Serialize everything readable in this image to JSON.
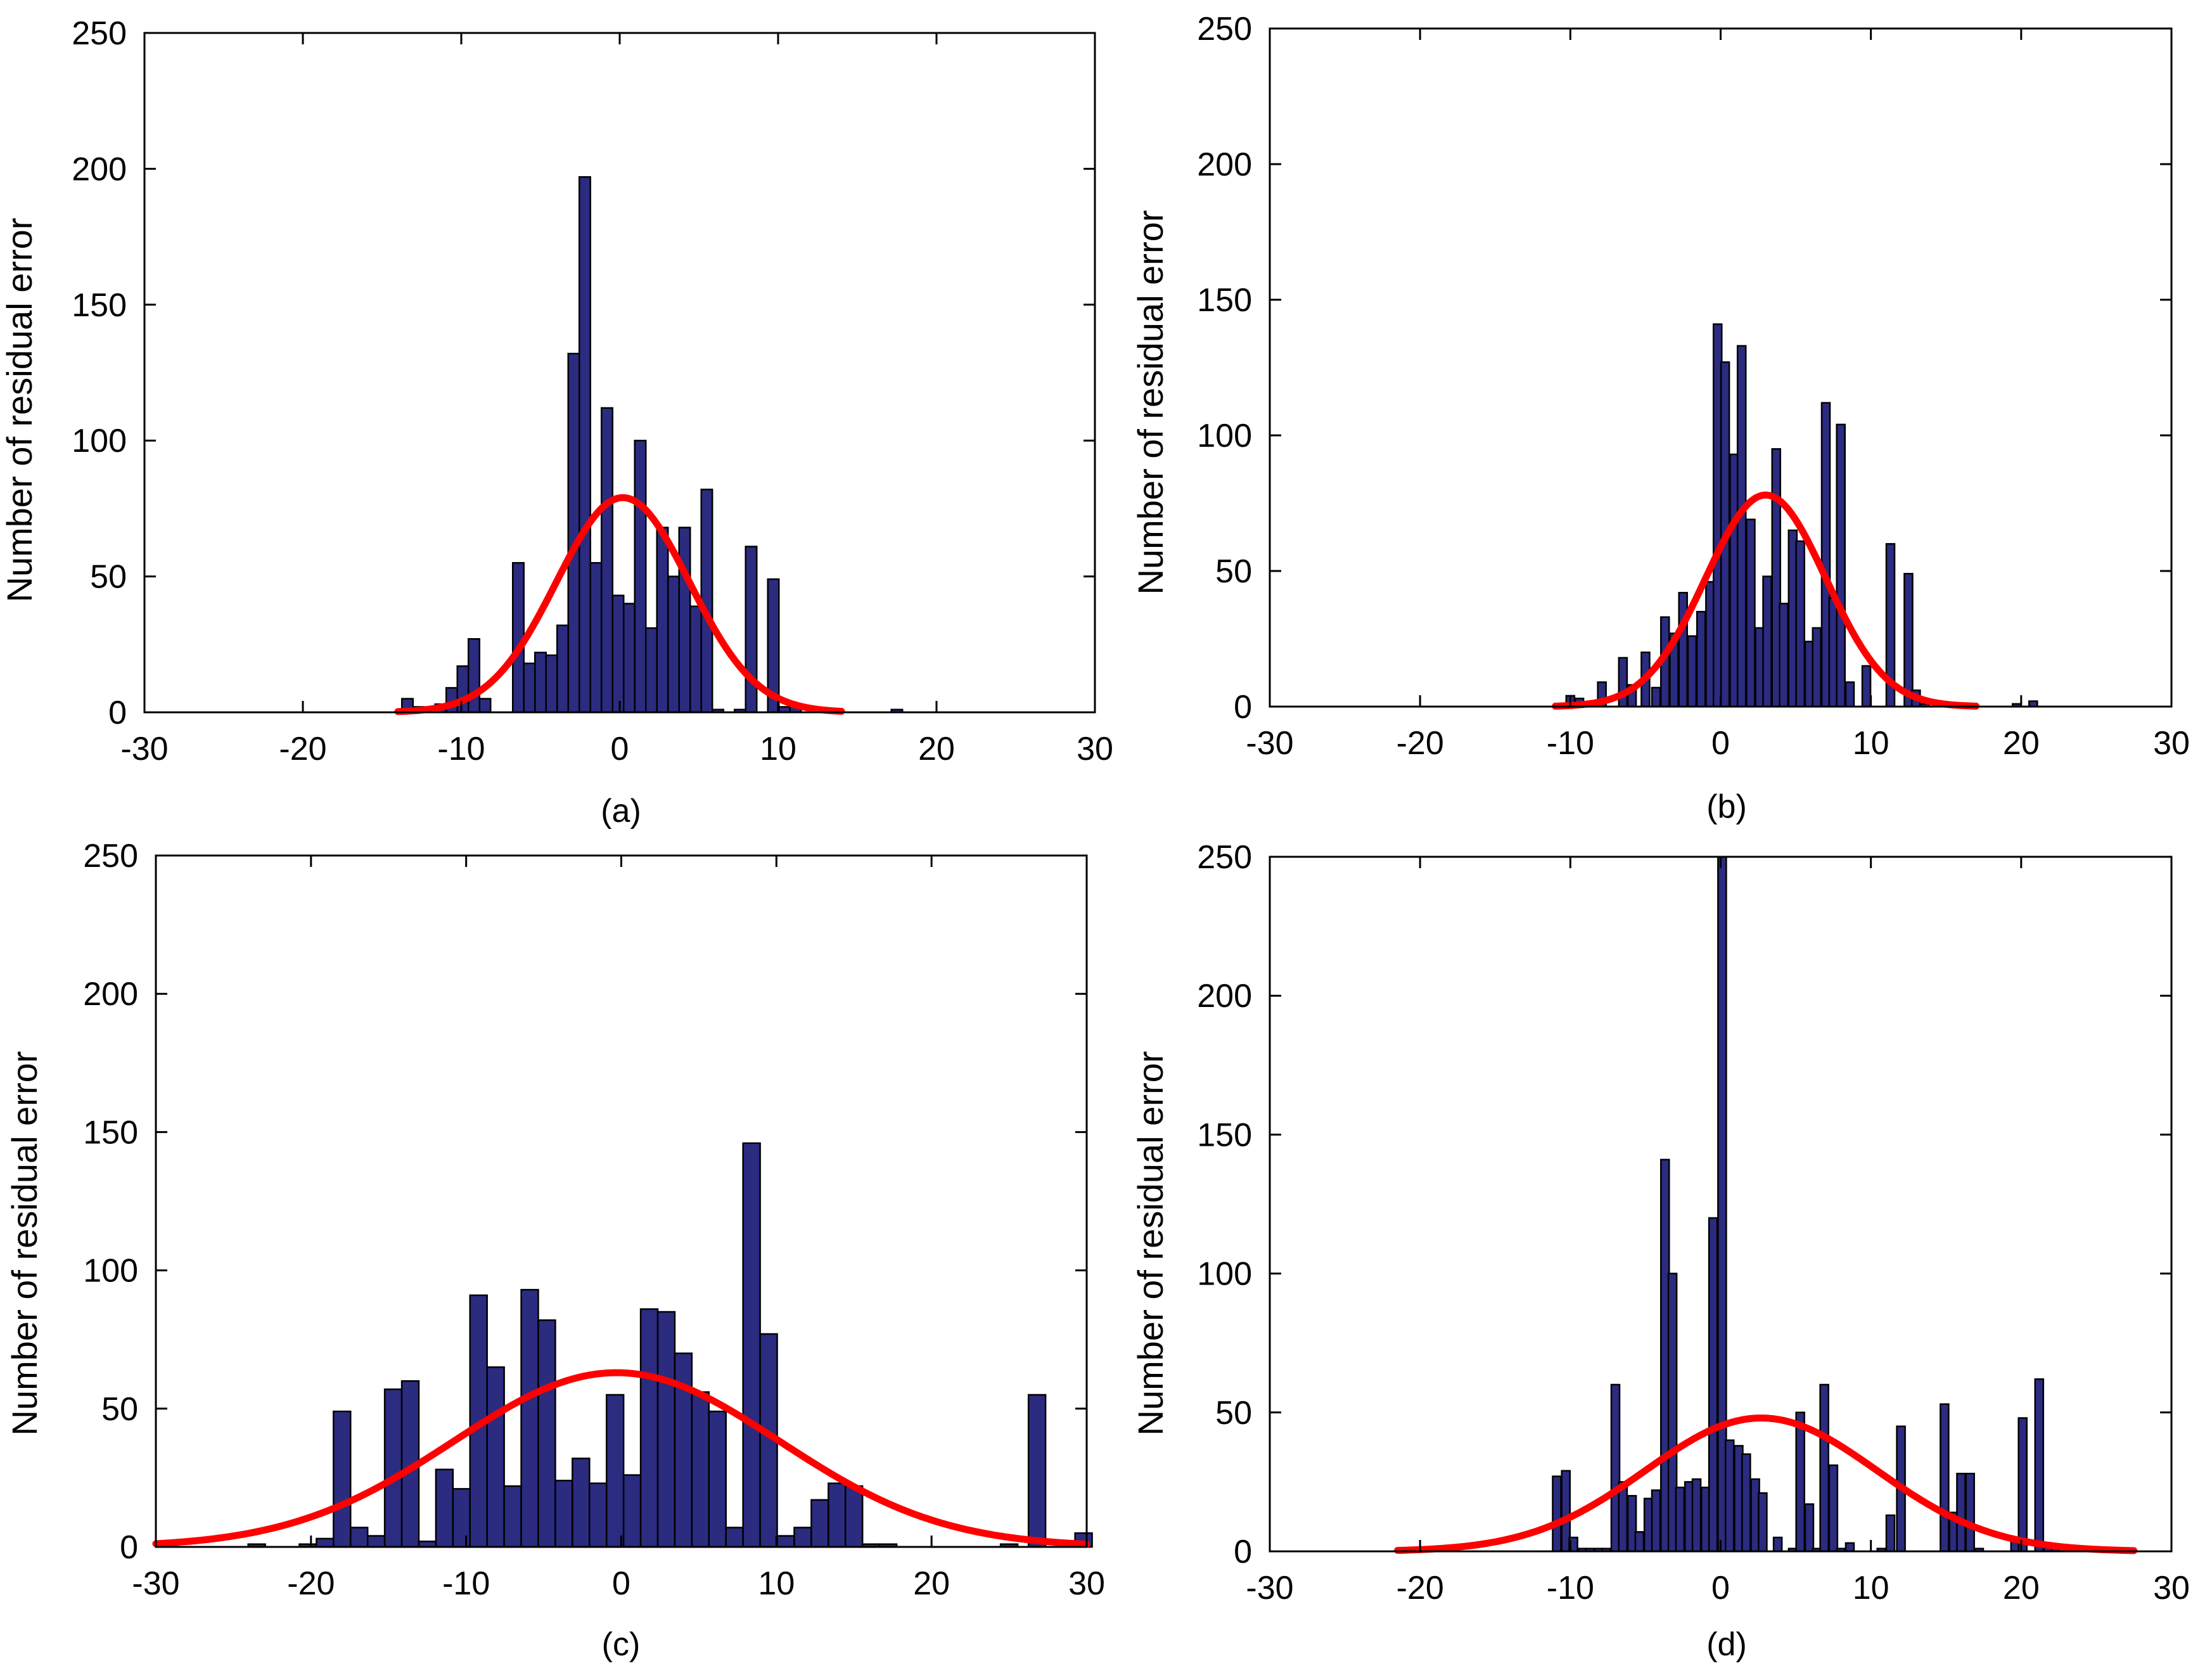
{
  "colors": {
    "bar_fill": "#2B2B80",
    "bar_edge": "#000000",
    "fit_line": "#FF0000",
    "axis": "#000000",
    "background": "#FFFFFF"
  },
  "chart_data": [
    {
      "panel": "a",
      "type": "bar",
      "caption": "(a)",
      "title": "",
      "xlabel": "",
      "ylabel": "Number of residual error",
      "xlim": [
        -30,
        30
      ],
      "ylim": [
        0,
        250
      ],
      "xticks": [
        -30,
        -20,
        -10,
        0,
        10,
        20,
        30
      ],
      "yticks": [
        0,
        50,
        100,
        150,
        200,
        250
      ],
      "xtick_labels": [
        "-30",
        "-20",
        "-10",
        "0",
        "10",
        "20",
        "30"
      ],
      "ytick_labels": [
        "0",
        "50",
        "100",
        "150",
        "200",
        "250"
      ],
      "bin_width": 0.7,
      "bins": [
        {
          "x": -13.4,
          "count": 5
        },
        {
          "x": -12.7,
          "count": 2
        },
        {
          "x": -11.3,
          "count": 3
        },
        {
          "x": -10.6,
          "count": 9
        },
        {
          "x": -9.9,
          "count": 17
        },
        {
          "x": -9.2,
          "count": 27
        },
        {
          "x": -8.5,
          "count": 5
        },
        {
          "x": -6.4,
          "count": 55
        },
        {
          "x": -5.7,
          "count": 18
        },
        {
          "x": -5.0,
          "count": 22
        },
        {
          "x": -4.3,
          "count": 21
        },
        {
          "x": -3.6,
          "count": 32
        },
        {
          "x": -2.9,
          "count": 132
        },
        {
          "x": -2.2,
          "count": 197
        },
        {
          "x": -1.5,
          "count": 55
        },
        {
          "x": -0.8,
          "count": 112
        },
        {
          "x": -0.1,
          "count": 43
        },
        {
          "x": 0.6,
          "count": 40
        },
        {
          "x": 1.3,
          "count": 100
        },
        {
          "x": 2.0,
          "count": 31
        },
        {
          "x": 2.7,
          "count": 68
        },
        {
          "x": 3.4,
          "count": 50
        },
        {
          "x": 4.1,
          "count": 68
        },
        {
          "x": 4.8,
          "count": 39
        },
        {
          "x": 5.5,
          "count": 82
        },
        {
          "x": 6.2,
          "count": 1
        },
        {
          "x": 7.6,
          "count": 1
        },
        {
          "x": 8.3,
          "count": 61
        },
        {
          "x": 9.7,
          "count": 49
        },
        {
          "x": 10.4,
          "count": 2
        },
        {
          "x": 11.1,
          "count": 3
        },
        {
          "x": 12.5,
          "count": 1
        },
        {
          "x": 17.5,
          "count": 1
        }
      ],
      "fit": {
        "type": "normal",
        "mean": 0.2,
        "sd": 4.2,
        "peak": 79,
        "x_range": [
          -14,
          14
        ]
      }
    },
    {
      "panel": "b",
      "type": "bar",
      "caption": "(b)",
      "title": "",
      "xlabel": "",
      "ylabel": "Number of residual error",
      "xlim": [
        -30,
        30
      ],
      "ylim": [
        0,
        250
      ],
      "xticks": [
        -30,
        -20,
        -10,
        0,
        10,
        20,
        30
      ],
      "yticks": [
        0,
        50,
        100,
        150,
        200,
        250
      ],
      "xtick_labels": [
        "-30",
        "-20",
        "-10",
        "0",
        "10",
        "20",
        "30"
      ],
      "ytick_labels": [
        "0",
        "50",
        "100",
        "150",
        "200",
        "250"
      ],
      "bin_width": 0.55,
      "bins": [
        {
          "x": -10.0,
          "count": 4
        },
        {
          "x": -9.4,
          "count": 3
        },
        {
          "x": -7.9,
          "count": 9
        },
        {
          "x": -6.5,
          "count": 18
        },
        {
          "x": -5.9,
          "count": 8
        },
        {
          "x": -5.0,
          "count": 20
        },
        {
          "x": -4.3,
          "count": 7
        },
        {
          "x": -3.7,
          "count": 33
        },
        {
          "x": -3.1,
          "count": 27
        },
        {
          "x": -2.5,
          "count": 42
        },
        {
          "x": -1.9,
          "count": 26
        },
        {
          "x": -1.3,
          "count": 35
        },
        {
          "x": -0.7,
          "count": 46
        },
        {
          "x": -0.2,
          "count": 141
        },
        {
          "x": 0.3,
          "count": 127
        },
        {
          "x": 0.9,
          "count": 93
        },
        {
          "x": 1.4,
          "count": 133
        },
        {
          "x": 2.0,
          "count": 69
        },
        {
          "x": 2.6,
          "count": 29
        },
        {
          "x": 3.1,
          "count": 48
        },
        {
          "x": 3.7,
          "count": 95
        },
        {
          "x": 4.2,
          "count": 38
        },
        {
          "x": 4.8,
          "count": 65
        },
        {
          "x": 5.3,
          "count": 61
        },
        {
          "x": 5.9,
          "count": 24
        },
        {
          "x": 6.4,
          "count": 29
        },
        {
          "x": 7.0,
          "count": 112
        },
        {
          "x": 7.5,
          "count": 40
        },
        {
          "x": 8.0,
          "count": 104
        },
        {
          "x": 8.6,
          "count": 9
        },
        {
          "x": 9.7,
          "count": 15
        },
        {
          "x": 11.3,
          "count": 60
        },
        {
          "x": 12.5,
          "count": 49
        },
        {
          "x": 13.0,
          "count": 6
        },
        {
          "x": 13.6,
          "count": 1
        },
        {
          "x": 19.7,
          "count": 1
        },
        {
          "x": 20.8,
          "count": 2
        }
      ],
      "fit": {
        "type": "normal",
        "mean": 3.0,
        "sd": 4.0,
        "peak": 78,
        "x_range": [
          -11,
          17
        ]
      }
    },
    {
      "panel": "c",
      "type": "bar",
      "caption": "(c)",
      "title": "",
      "xlabel": "",
      "ylabel": "Number of residual error",
      "xlim": [
        -30,
        30
      ],
      "ylim": [
        0,
        250
      ],
      "xticks": [
        -30,
        -20,
        -10,
        0,
        10,
        20,
        30
      ],
      "yticks": [
        0,
        50,
        100,
        150,
        200,
        250
      ],
      "xtick_labels": [
        "-30",
        "-20",
        "-10",
        "0",
        "10",
        "20",
        "30"
      ],
      "ytick_labels": [
        "0",
        "50",
        "100",
        "150",
        "200",
        "250"
      ],
      "bin_width": 1.1,
      "bins": [
        {
          "x": -23.5,
          "count": 1
        },
        {
          "x": -20.2,
          "count": 1
        },
        {
          "x": -19.1,
          "count": 3
        },
        {
          "x": -18.0,
          "count": 49
        },
        {
          "x": -16.9,
          "count": 7
        },
        {
          "x": -15.8,
          "count": 4
        },
        {
          "x": -14.7,
          "count": 57
        },
        {
          "x": -13.6,
          "count": 60
        },
        {
          "x": -12.5,
          "count": 2
        },
        {
          "x": -11.4,
          "count": 28
        },
        {
          "x": -10.3,
          "count": 21
        },
        {
          "x": -9.2,
          "count": 91
        },
        {
          "x": -8.1,
          "count": 65
        },
        {
          "x": -7.0,
          "count": 22
        },
        {
          "x": -5.9,
          "count": 93
        },
        {
          "x": -4.8,
          "count": 82
        },
        {
          "x": -3.7,
          "count": 24
        },
        {
          "x": -2.6,
          "count": 32
        },
        {
          "x": -1.5,
          "count": 23
        },
        {
          "x": -0.4,
          "count": 55
        },
        {
          "x": 0.7,
          "count": 26
        },
        {
          "x": 1.8,
          "count": 86
        },
        {
          "x": 2.9,
          "count": 85
        },
        {
          "x": 4.0,
          "count": 70
        },
        {
          "x": 5.1,
          "count": 56
        },
        {
          "x": 6.2,
          "count": 49
        },
        {
          "x": 7.3,
          "count": 7
        },
        {
          "x": 8.4,
          "count": 146
        },
        {
          "x": 9.5,
          "count": 77
        },
        {
          "x": 10.6,
          "count": 4
        },
        {
          "x": 11.7,
          "count": 7
        },
        {
          "x": 12.8,
          "count": 17
        },
        {
          "x": 13.9,
          "count": 23
        },
        {
          "x": 15.0,
          "count": 22
        },
        {
          "x": 16.1,
          "count": 1
        },
        {
          "x": 17.2,
          "count": 1
        },
        {
          "x": 25.0,
          "count": 1
        },
        {
          "x": 26.8,
          "count": 55
        },
        {
          "x": 29.8,
          "count": 5
        }
      ],
      "fit": {
        "type": "normal",
        "mean": -0.3,
        "sd": 10.5,
        "peak": 63,
        "x_range": [
          -30,
          30
        ]
      }
    },
    {
      "panel": "d",
      "type": "bar",
      "caption": "(d)",
      "title": "",
      "xlabel": "",
      "ylabel": "Number of residual error",
      "xlim": [
        -30,
        30
      ],
      "ylim": [
        0,
        250
      ],
      "xticks": [
        -30,
        -20,
        -10,
        0,
        10,
        20,
        30
      ],
      "yticks": [
        0,
        50,
        100,
        150,
        200,
        250
      ],
      "xtick_labels": [
        "-30",
        "-20",
        "-10",
        "0",
        "10",
        "20",
        "30"
      ],
      "ytick_labels": [
        "0",
        "50",
        "100",
        "150",
        "200",
        "250"
      ],
      "bin_width": 0.55,
      "bins": [
        {
          "x": -10.9,
          "count": 27
        },
        {
          "x": -10.3,
          "count": 29
        },
        {
          "x": -9.8,
          "count": 5
        },
        {
          "x": -9.2,
          "count": 1
        },
        {
          "x": -8.7,
          "count": 1
        },
        {
          "x": -8.1,
          "count": 1
        },
        {
          "x": -7.6,
          "count": 1
        },
        {
          "x": -7.0,
          "count": 60
        },
        {
          "x": -6.5,
          "count": 25
        },
        {
          "x": -5.9,
          "count": 20
        },
        {
          "x": -5.4,
          "count": 7
        },
        {
          "x": -4.8,
          "count": 19
        },
        {
          "x": -4.3,
          "count": 22
        },
        {
          "x": -3.7,
          "count": 141
        },
        {
          "x": -3.2,
          "count": 100
        },
        {
          "x": -2.7,
          "count": 23
        },
        {
          "x": -2.1,
          "count": 25
        },
        {
          "x": -1.6,
          "count": 26
        },
        {
          "x": -1.0,
          "count": 23
        },
        {
          "x": -0.5,
          "count": 120
        },
        {
          "x": 0.1,
          "count": 250
        },
        {
          "x": 0.6,
          "count": 40
        },
        {
          "x": 1.2,
          "count": 38
        },
        {
          "x": 1.7,
          "count": 35
        },
        {
          "x": 2.3,
          "count": 26
        },
        {
          "x": 2.8,
          "count": 21
        },
        {
          "x": 3.8,
          "count": 5
        },
        {
          "x": 4.8,
          "count": 1
        },
        {
          "x": 5.3,
          "count": 50
        },
        {
          "x": 5.9,
          "count": 17
        },
        {
          "x": 6.4,
          "count": 1
        },
        {
          "x": 6.9,
          "count": 60
        },
        {
          "x": 7.5,
          "count": 31
        },
        {
          "x": 8.0,
          "count": 1
        },
        {
          "x": 8.6,
          "count": 3
        },
        {
          "x": 10.7,
          "count": 1
        },
        {
          "x": 11.3,
          "count": 13
        },
        {
          "x": 12.0,
          "count": 45
        },
        {
          "x": 14.9,
          "count": 53
        },
        {
          "x": 15.5,
          "count": 14
        },
        {
          "x": 16.0,
          "count": 28
        },
        {
          "x": 16.6,
          "count": 28
        },
        {
          "x": 17.2,
          "count": 1
        },
        {
          "x": 19.6,
          "count": 4
        },
        {
          "x": 20.1,
          "count": 48
        },
        {
          "x": 21.2,
          "count": 62
        },
        {
          "x": 21.8,
          "count": 2
        },
        {
          "x": 22.3,
          "count": 1
        }
      ],
      "fit": {
        "type": "normal",
        "mean": 2.7,
        "sd": 7.7,
        "peak": 48,
        "x_range": [
          -21.5,
          27.5
        ]
      }
    }
  ]
}
